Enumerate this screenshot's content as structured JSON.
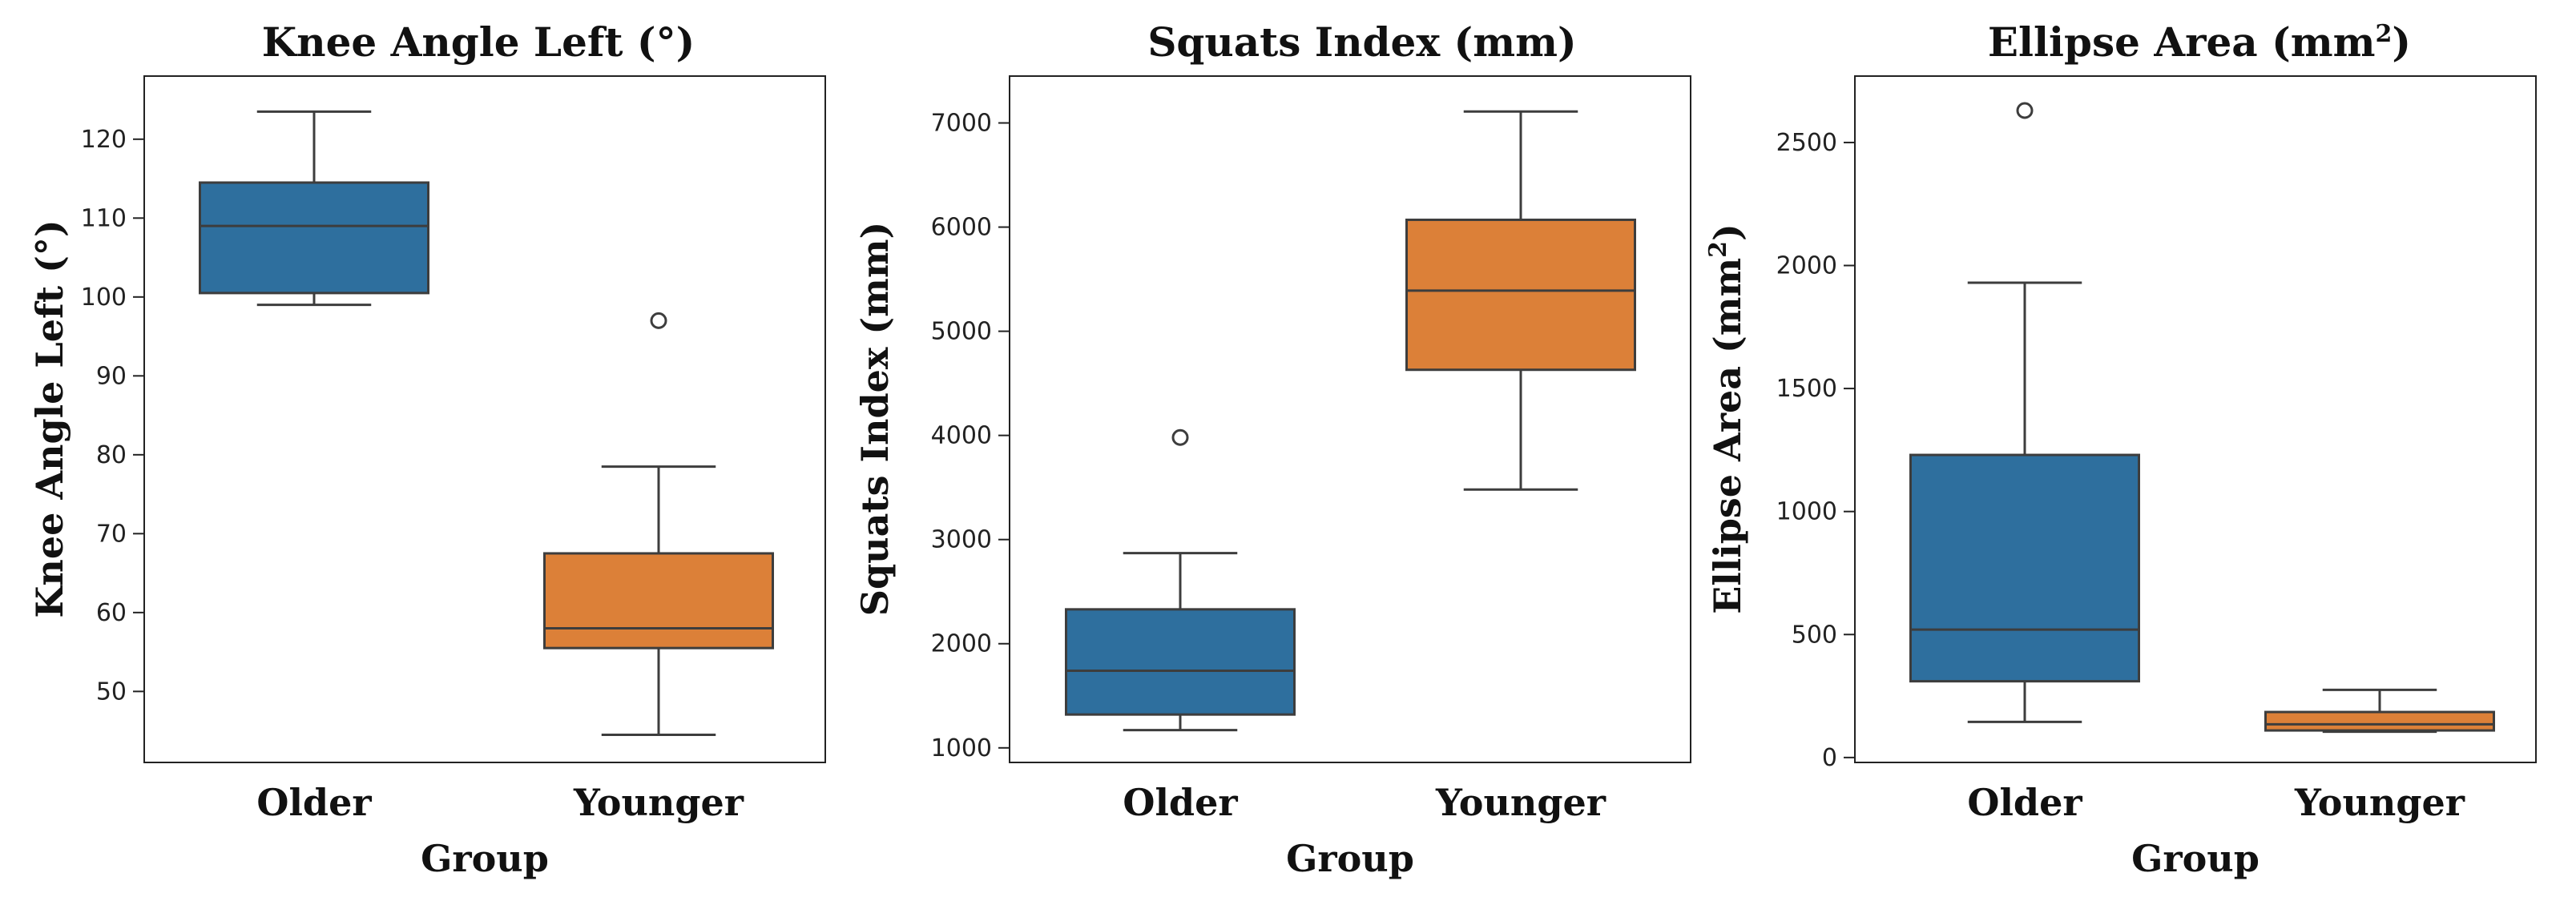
{
  "colors": {
    "older": "#2E6F9E",
    "younger": "#DC8038",
    "line": "#3d3d3d"
  },
  "chart_data": [
    {
      "type": "box",
      "title": "Knee Angle Left (°)",
      "title_sup": "",
      "title_suffix": "",
      "xlabel": "Group",
      "ylabel": "Knee Angle Left (°)",
      "ylabel_sup": "",
      "ylabel_suffix": "",
      "categories": [
        "Older",
        "Younger"
      ],
      "ylim": [
        41,
        128
      ],
      "yticks": [
        "50",
        "60",
        "70",
        "80",
        "90",
        "100",
        "110",
        "120"
      ],
      "boxes": [
        {
          "group": "Older",
          "whisker_low": 99,
          "q1": 100.5,
          "median": 109,
          "q3": 114.5,
          "whisker_high": 123.5,
          "outliers": []
        },
        {
          "group": "Younger",
          "whisker_low": 44.5,
          "q1": 55.5,
          "median": 58,
          "q3": 67.5,
          "whisker_high": 78.5,
          "outliers": [
            97
          ]
        }
      ]
    },
    {
      "type": "box",
      "title": "Squats Index (mm)",
      "title_sup": "",
      "title_suffix": "",
      "xlabel": "Group",
      "ylabel": "Squats Index (mm)",
      "ylabel_sup": "",
      "ylabel_suffix": "",
      "categories": [
        "Older",
        "Younger"
      ],
      "ylim": [
        860,
        7450
      ],
      "yticks": [
        "1000",
        "2000",
        "3000",
        "4000",
        "5000",
        "6000",
        "7000"
      ],
      "boxes": [
        {
          "group": "Older",
          "whisker_low": 1170,
          "q1": 1320,
          "median": 1740,
          "q3": 2330,
          "whisker_high": 2870,
          "outliers": [
            3980
          ]
        },
        {
          "group": "Younger",
          "whisker_low": 3480,
          "q1": 4630,
          "median": 5390,
          "q3": 6070,
          "whisker_high": 7110,
          "outliers": []
        }
      ]
    },
    {
      "type": "box",
      "title": "Ellipse Area (mm",
      "title_sup": "2",
      "title_suffix": ")",
      "xlabel": "Group",
      "ylabel": "Ellipse Area (mm",
      "ylabel_sup": "2",
      "ylabel_suffix": ")",
      "categories": [
        "Older",
        "Younger"
      ],
      "ylim": [
        -20,
        2770
      ],
      "yticks": [
        "0",
        "500",
        "1000",
        "1500",
        "2000",
        "2500"
      ],
      "boxes": [
        {
          "group": "Older",
          "whisker_low": 145,
          "q1": 310,
          "median": 520,
          "q3": 1230,
          "whisker_high": 1930,
          "outliers": [
            2630
          ]
        },
        {
          "group": "Younger",
          "whisker_low": 105,
          "q1": 110,
          "median": 135,
          "q3": 185,
          "whisker_high": 275,
          "outliers": []
        }
      ]
    }
  ]
}
